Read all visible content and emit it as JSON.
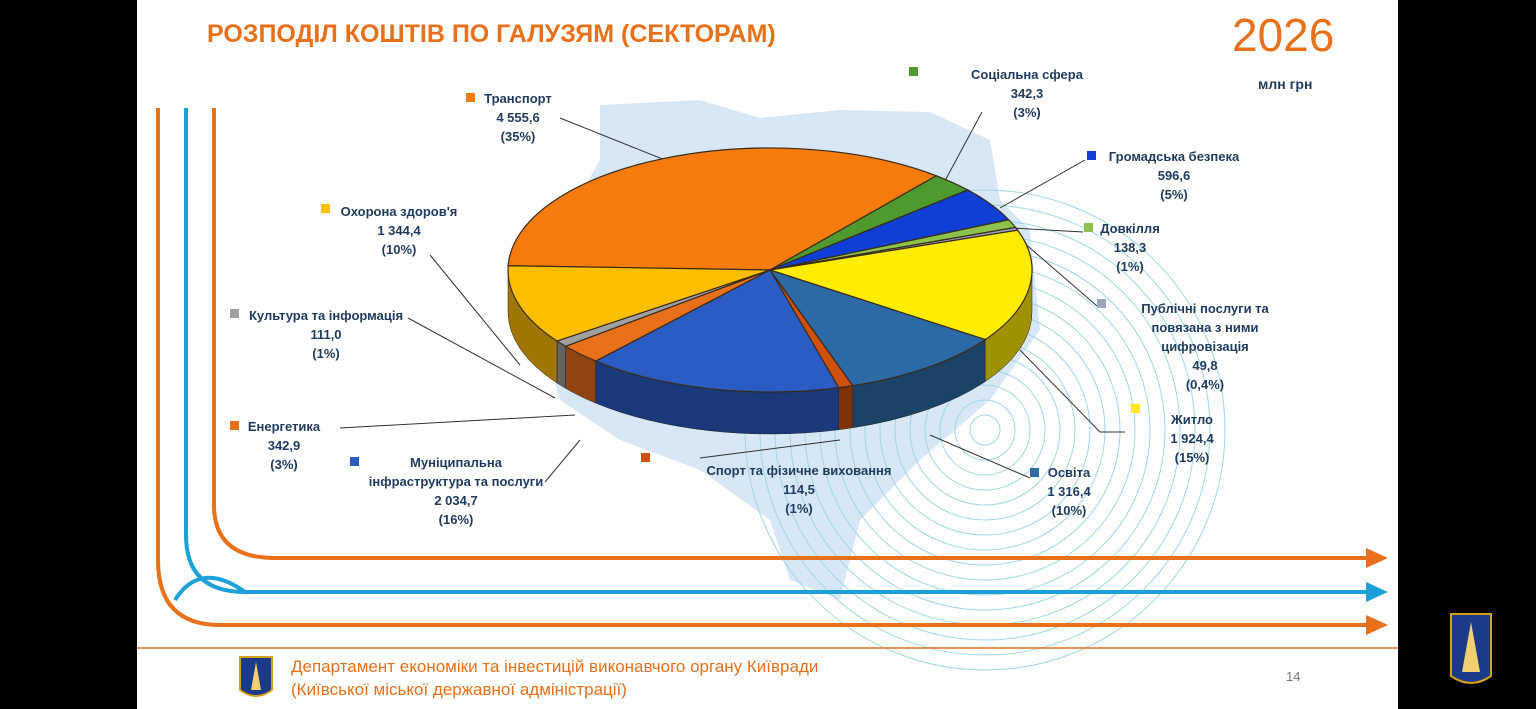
{
  "chart_data": {
    "type": "pie3d",
    "title": "РОЗПОДІЛ КОШТІВ ПО ГАЛУЗЯМ (СЕКТОРАМ)",
    "year_label": "2026",
    "unit": "млн грн",
    "categories": [
      "Транспорт",
      "Соціальна сфера",
      "Громадська безпека",
      "Довкілля",
      "Публічні послуги та повязана з ними цифровізація",
      "Житло",
      "Освіта",
      "Спорт та фізичне виховання",
      "Муніципальна інфраструктура та послуги",
      "Енергетика",
      "Культура та інформація",
      "Охорона здоров'я"
    ],
    "values": [
      4555.6,
      342.3,
      596.6,
      138.3,
      49.8,
      1924.4,
      1316.4,
      114.5,
      2034.7,
      342.9,
      111.0,
      1344.4
    ],
    "value_labels": [
      "4 555,6",
      "342,3",
      "596,6",
      "138,3",
      "49,8",
      "1 924,4",
      "1 316,4",
      "114,5",
      "2 034,7",
      "342,9",
      "111,0",
      "1 344,4"
    ],
    "percent_labels": [
      "(35%)",
      "(3%)",
      "(5%)",
      "(1%)",
      "(0,4%)",
      "(15%)",
      "(10%)",
      "(1%)",
      "(16%)",
      "(3%)",
      "(1%)",
      "(10%)"
    ],
    "colors": [
      "#f47b0c",
      "#4f9a2f",
      "#0f3fd6",
      "#8cc24c",
      "#9aa6bb",
      "#ffec00",
      "#2c6aa6",
      "#d0500e",
      "#2a5cc4",
      "#e8701a",
      "#a0a0a0",
      "#ffbf00"
    ]
  },
  "footer": {
    "lines": [
      "Департамент економіки та інвестицій виконавчого органу Київради",
      "(Київської міської державної адміністрації)"
    ],
    "page_number": "14"
  }
}
